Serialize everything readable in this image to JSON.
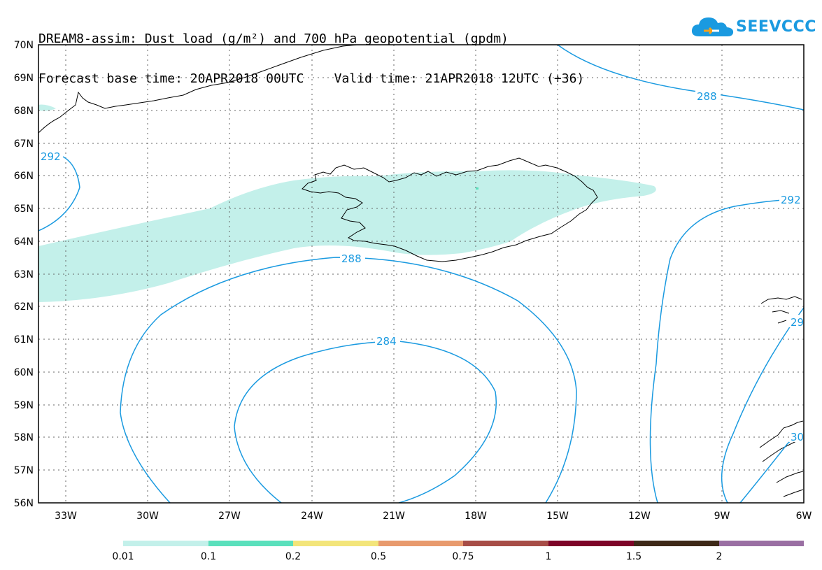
{
  "header": {
    "title_line1": "DREAM8-assim: Dust load (g/m²) and 700 hPa geopotential (gpdm)",
    "title_line2": "Forecast base time: 20APR2018 00UTC    Valid time: 21APR2018 12UTC (+36)"
  },
  "logo": {
    "text": "SEEVCCC",
    "icon": "cloud-icon",
    "color": "#1a9ae0"
  },
  "map": {
    "region": "Iceland / North Atlantic",
    "lon_range": [
      -34.5,
      -6
    ],
    "lat_range": [
      56,
      70
    ],
    "lat_labels": [
      "70N",
      "69N",
      "68N",
      "67N",
      "66N",
      "65N",
      "64N",
      "63N",
      "62N",
      "61N",
      "60N",
      "59N",
      "58N",
      "57N",
      "56N"
    ],
    "lon_labels": [
      "33W",
      "30W",
      "27W",
      "24W",
      "21W",
      "18W",
      "15W",
      "12W",
      "9W",
      "6W"
    ],
    "contour_color": "#1a9ae0",
    "dust_fill_color": "#c3f0ea",
    "contour_labels": [
      {
        "value": "292",
        "id": "contour-292-west"
      },
      {
        "value": "288",
        "id": "contour-288-north"
      },
      {
        "value": "288",
        "id": "contour-288-south"
      },
      {
        "value": "292",
        "id": "contour-292-east"
      },
      {
        "value": "284",
        "id": "contour-284"
      },
      {
        "value": "29",
        "id": "contour-29x"
      },
      {
        "value": "30",
        "id": "contour-30x"
      }
    ]
  },
  "colorbar": {
    "colors": [
      "#c3f0ea",
      "#5ae0bc",
      "#f3e57a",
      "#e89a6d",
      "#a74d47",
      "#7d0428",
      "#3e2918",
      "#9a6fa3"
    ],
    "labels": [
      "0.01",
      "0.1",
      "0.2",
      "0.5",
      "0.75",
      "1",
      "1.5",
      "2"
    ]
  }
}
